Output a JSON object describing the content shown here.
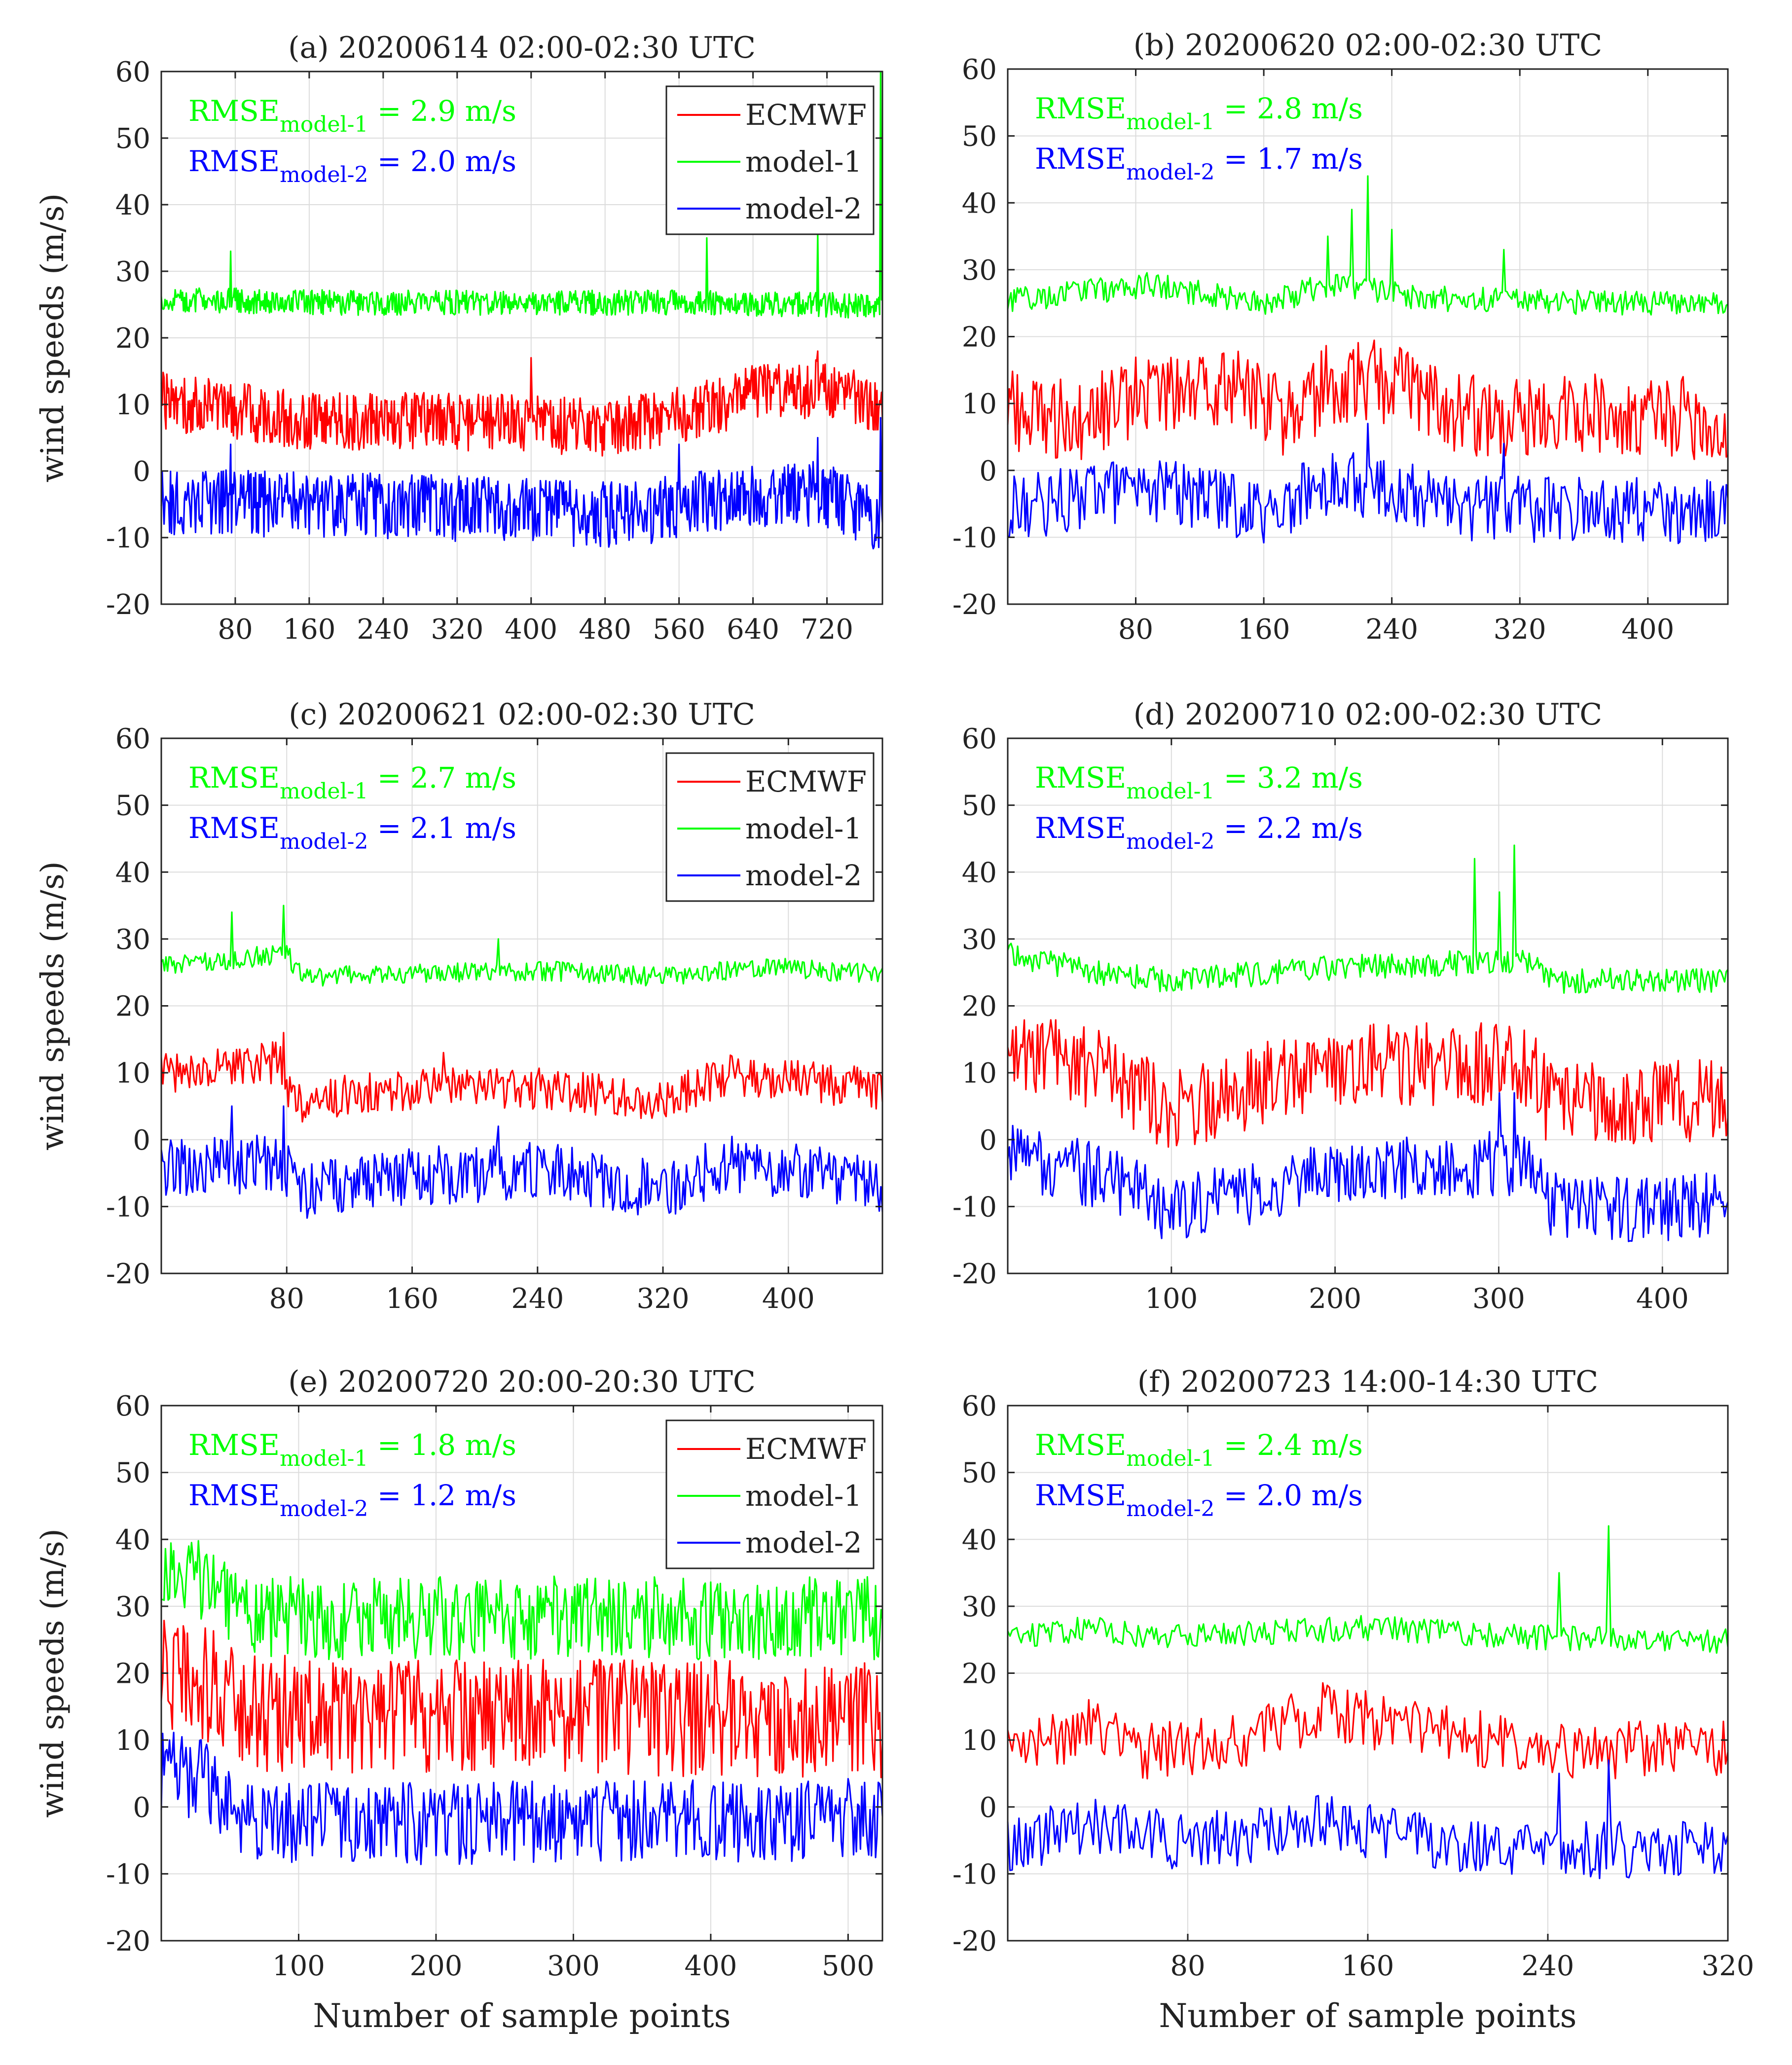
{
  "figure": {
    "ylabel": "wind speeds (m/s)",
    "xlabel": "Number of sample points",
    "colors": {
      "ECMWF": "#ff0000",
      "model-1": "#00ff00",
      "model-2": "#0000ff"
    }
  },
  "chart_data": [
    {
      "type": "line",
      "title": "(a) 20200614 02:00-02:30 UTC",
      "xlim": [
        0,
        780
      ],
      "ylim": [
        -20,
        60
      ],
      "xticks": [
        80,
        160,
        240,
        320,
        400,
        480,
        560,
        640,
        720
      ],
      "yticks": [
        -20,
        -10,
        0,
        10,
        20,
        30,
        40,
        50,
        60
      ],
      "n_points": 780,
      "rmse": [
        {
          "prefix": "RMSE",
          "sub": "model-1",
          "text": "= 2.9 m/s",
          "color": "#00ff00"
        },
        {
          "prefix": "RMSE",
          "sub": "model-2",
          "text": "= 2.0 m/s",
          "color": "#0000ff"
        }
      ],
      "legend": true,
      "series": [
        {
          "name": "ECMWF",
          "color": "#ff0000",
          "base": [
            [
              0,
              11
            ],
            [
              160,
              8
            ],
            [
              320,
              8
            ],
            [
              480,
              7
            ],
            [
              560,
              9
            ],
            [
              640,
              12
            ],
            [
              720,
              13
            ],
            [
              780,
              10
            ]
          ],
          "amp": 3.5,
          "spikes": [
            [
              400,
              17
            ],
            [
              710,
              18
            ]
          ]
        },
        {
          "name": "model-1",
          "color": "#00ff00",
          "base": [
            [
              0,
              26
            ],
            [
              200,
              25.5
            ],
            [
              400,
              25.5
            ],
            [
              600,
              25.5
            ],
            [
              780,
              25
            ]
          ],
          "amp": 1.5,
          "spikes": [
            [
              75,
              33
            ],
            [
              590,
              35
            ],
            [
              710,
              36
            ],
            [
              778,
              60
            ]
          ]
        },
        {
          "name": "model-2",
          "color": "#0000ff",
          "base": [
            [
              0,
              -4
            ],
            [
              160,
              -4.5
            ],
            [
              320,
              -5
            ],
            [
              480,
              -6
            ],
            [
              560,
              -5
            ],
            [
              640,
              -3
            ],
            [
              720,
              -3
            ],
            [
              780,
              -7
            ]
          ],
          "amp": 4,
          "spikes": [
            [
              75,
              4
            ],
            [
              560,
              4
            ],
            [
              710,
              5
            ],
            [
              778,
              8
            ]
          ]
        }
      ]
    },
    {
      "type": "line",
      "title": "(b) 20200620 02:00-02:30 UTC",
      "xlim": [
        0,
        450
      ],
      "ylim": [
        -20,
        60
      ],
      "xticks": [
        80,
        160,
        240,
        320,
        400
      ],
      "yticks": [
        -20,
        -10,
        0,
        10,
        20,
        30,
        40,
        50,
        60
      ],
      "n_points": 450,
      "rmse": [
        {
          "prefix": "RMSE",
          "sub": "model-1",
          "text": "= 2.8 m/s",
          "color": "#00ff00"
        },
        {
          "prefix": "RMSE",
          "sub": "model-2",
          "text": "= 1.7 m/s",
          "color": "#0000ff"
        }
      ],
      "legend": false,
      "series": [
        {
          "name": "ECMWF",
          "color": "#ff0000",
          "base": [
            [
              0,
              10
            ],
            [
              40,
              8
            ],
            [
              90,
              13
            ],
            [
              140,
              13
            ],
            [
              180,
              8
            ],
            [
              200,
              14
            ],
            [
              240,
              14
            ],
            [
              280,
              9
            ],
            [
              330,
              9
            ],
            [
              400,
              9
            ],
            [
              450,
              8
            ]
          ],
          "amp": 5,
          "spikes": []
        },
        {
          "name": "model-1",
          "color": "#00ff00",
          "base": [
            [
              0,
              25.5
            ],
            [
              90,
              28
            ],
            [
              160,
              25
            ],
            [
              200,
              28
            ],
            [
              260,
              26
            ],
            [
              320,
              25.5
            ],
            [
              450,
              25
            ]
          ],
          "amp": 1.5,
          "spikes": [
            [
              200,
              35
            ],
            [
              215,
              39
            ],
            [
              225,
              44
            ],
            [
              240,
              36
            ],
            [
              310,
              33
            ]
          ]
        },
        {
          "name": "model-2",
          "color": "#0000ff",
          "base": [
            [
              0,
              -5
            ],
            [
              90,
              -2
            ],
            [
              160,
              -6
            ],
            [
              200,
              -1
            ],
            [
              240,
              -2
            ],
            [
              280,
              -5
            ],
            [
              450,
              -5.5
            ]
          ],
          "amp": 4,
          "spikes": [
            [
              225,
              7
            ],
            [
              310,
              4
            ]
          ]
        }
      ]
    },
    {
      "type": "line",
      "title": "(c) 20200621 02:00-02:30 UTC",
      "xlim": [
        0,
        460
      ],
      "ylim": [
        -20,
        60
      ],
      "xticks": [
        80,
        160,
        240,
        320,
        400
      ],
      "yticks": [
        -20,
        -10,
        0,
        10,
        20,
        30,
        40,
        50,
        60
      ],
      "n_points": 460,
      "rmse": [
        {
          "prefix": "RMSE",
          "sub": "model-1",
          "text": "= 2.7 m/s",
          "color": "#00ff00"
        },
        {
          "prefix": "RMSE",
          "sub": "model-2",
          "text": "= 2.1 m/s",
          "color": "#0000ff"
        }
      ],
      "legend": true,
      "series": [
        {
          "name": "ECMWF",
          "color": "#ff0000",
          "base": [
            [
              0,
              10
            ],
            [
              75,
              12
            ],
            [
              85,
              6
            ],
            [
              160,
              8
            ],
            [
              240,
              8
            ],
            [
              320,
              6
            ],
            [
              360,
              10
            ],
            [
              460,
              8
            ]
          ],
          "amp": 2.5,
          "spikes": [
            [
              78,
              16
            ],
            [
              180,
              13
            ]
          ]
        },
        {
          "name": "model-1",
          "color": "#00ff00",
          "base": [
            [
              0,
              26
            ],
            [
              80,
              28
            ],
            [
              90,
              24.5
            ],
            [
              240,
              25.5
            ],
            [
              320,
              24.5
            ],
            [
              380,
              26
            ],
            [
              460,
              25
            ]
          ],
          "amp": 1.2,
          "spikes": [
            [
              45,
              34
            ],
            [
              78,
              35
            ],
            [
              215,
              30
            ]
          ]
        },
        {
          "name": "model-2",
          "color": "#0000ff",
          "base": [
            [
              0,
              -4
            ],
            [
              75,
              -3
            ],
            [
              90,
              -7
            ],
            [
              160,
              -5
            ],
            [
              240,
              -4
            ],
            [
              320,
              -7
            ],
            [
              360,
              -3
            ],
            [
              460,
              -6
            ]
          ],
          "amp": 3.5,
          "spikes": [
            [
              45,
              5
            ],
            [
              78,
              5
            ],
            [
              215,
              2
            ]
          ]
        }
      ]
    },
    {
      "type": "line",
      "title": "(d) 20200710 02:00-02:30 UTC",
      "xlim": [
        0,
        440
      ],
      "ylim": [
        -20,
        60
      ],
      "xticks": [
        100,
        200,
        300,
        400
      ],
      "yticks": [
        -20,
        -10,
        0,
        10,
        20,
        30,
        40,
        50,
        60
      ],
      "n_points": 435,
      "rmse": [
        {
          "prefix": "RMSE",
          "sub": "model-1",
          "text": "= 3.2 m/s",
          "color": "#00ff00"
        },
        {
          "prefix": "RMSE",
          "sub": "model-2",
          "text": "= 2.2 m/s",
          "color": "#0000ff"
        }
      ],
      "legend": false,
      "series": [
        {
          "name": "ECMWF",
          "color": "#ff0000",
          "base": [
            [
              0,
              14
            ],
            [
              60,
              11
            ],
            [
              100,
              5
            ],
            [
              140,
              8
            ],
            [
              200,
              12
            ],
            [
              320,
              12
            ],
            [
              330,
              6
            ],
            [
              380,
              6
            ],
            [
              435,
              7
            ]
          ],
          "amp": 5,
          "spikes": []
        },
        {
          "name": "model-1",
          "color": "#00ff00",
          "base": [
            [
              0,
              28
            ],
            [
              60,
              25
            ],
            [
              100,
              24
            ],
            [
              200,
              26
            ],
            [
              320,
              27
            ],
            [
              330,
              24
            ],
            [
              435,
              24
            ]
          ],
          "amp": 1.5,
          "spikes": [
            [
              285,
              42
            ],
            [
              300,
              37
            ],
            [
              310,
              44
            ]
          ]
        },
        {
          "name": "model-2",
          "color": "#0000ff",
          "base": [
            [
              0,
              -2
            ],
            [
              60,
              -5
            ],
            [
              100,
              -10
            ],
            [
              200,
              -4
            ],
            [
              320,
              -3
            ],
            [
              330,
              -9
            ],
            [
              400,
              -10
            ],
            [
              435,
              -9
            ]
          ],
          "amp": 4,
          "spikes": [
            [
              300,
              7
            ],
            [
              310,
              7
            ]
          ]
        }
      ]
    },
    {
      "type": "line",
      "title": "(e) 20200720 20:00-20:30 UTC",
      "xlim": [
        0,
        525
      ],
      "ylim": [
        -20,
        60
      ],
      "xticks": [
        100,
        200,
        300,
        400,
        500
      ],
      "yticks": [
        -20,
        -10,
        0,
        10,
        20,
        30,
        40,
        50,
        60
      ],
      "n_points": 525,
      "rmse": [
        {
          "prefix": "RMSE",
          "sub": "model-1",
          "text": "= 1.8 m/s",
          "color": "#00ff00"
        },
        {
          "prefix": "RMSE",
          "sub": "model-2",
          "text": "= 1.2 m/s",
          "color": "#0000ff"
        }
      ],
      "legend": true,
      "series": [
        {
          "name": "ECMWF",
          "color": "#ff0000",
          "base": [
            [
              0,
              21
            ],
            [
              30,
              20
            ],
            [
              60,
              15
            ],
            [
              525,
              14
            ]
          ],
          "amp": 7,
          "spikes": []
        },
        {
          "name": "model-1",
          "color": "#00ff00",
          "base": [
            [
              0,
              36
            ],
            [
              30,
              35
            ],
            [
              60,
              29
            ],
            [
              525,
              29
            ]
          ],
          "amp": 5,
          "spikes": [
            [
              20,
              39
            ]
          ]
        },
        {
          "name": "model-2",
          "color": "#0000ff",
          "base": [
            [
              0,
              6
            ],
            [
              30,
              5
            ],
            [
              60,
              -2
            ],
            [
              525,
              -1
            ]
          ],
          "amp": 5,
          "spikes": []
        }
      ]
    },
    {
      "type": "line",
      "title": "(f) 20200723 14:00-14:30 UTC",
      "xlim": [
        0,
        320
      ],
      "ylim": [
        -20,
        60
      ],
      "xticks": [
        80,
        160,
        240,
        320
      ],
      "yticks": [
        -20,
        -10,
        0,
        10,
        20,
        30,
        40,
        50,
        60
      ],
      "n_points": 320,
      "rmse": [
        {
          "prefix": "RMSE",
          "sub": "model-1",
          "text": "= 2.4 m/s",
          "color": "#00ff00"
        },
        {
          "prefix": "RMSE",
          "sub": "model-2",
          "text": "= 2.0 m/s",
          "color": "#0000ff"
        }
      ],
      "legend": false,
      "series": [
        {
          "name": "ECMWF",
          "color": "#ff0000",
          "base": [
            [
              0,
              8
            ],
            [
              40,
              13
            ],
            [
              60,
              9
            ],
            [
              100,
              10
            ],
            [
              140,
              15
            ],
            [
              180,
              12
            ],
            [
              240,
              9
            ],
            [
              320,
              9
            ]
          ],
          "amp": 3.5,
          "spikes": []
        },
        {
          "name": "model-1",
          "color": "#00ff00",
          "base": [
            [
              0,
              25.5
            ],
            [
              40,
              27
            ],
            [
              60,
              25.5
            ],
            [
              160,
              27
            ],
            [
              240,
              25.5
            ],
            [
              320,
              25
            ]
          ],
          "amp": 1.5,
          "spikes": [
            [
              245,
              35
            ],
            [
              267,
              42
            ]
          ]
        },
        {
          "name": "model-2",
          "color": "#0000ff",
          "base": [
            [
              0,
              -5
            ],
            [
              40,
              -2
            ],
            [
              80,
              -5
            ],
            [
              140,
              -2
            ],
            [
              200,
              -5
            ],
            [
              240,
              -6
            ],
            [
              320,
              -6
            ]
          ],
          "amp": 3.5,
          "spikes": [
            [
              245,
              5
            ],
            [
              267,
              7
            ]
          ]
        }
      ]
    }
  ]
}
